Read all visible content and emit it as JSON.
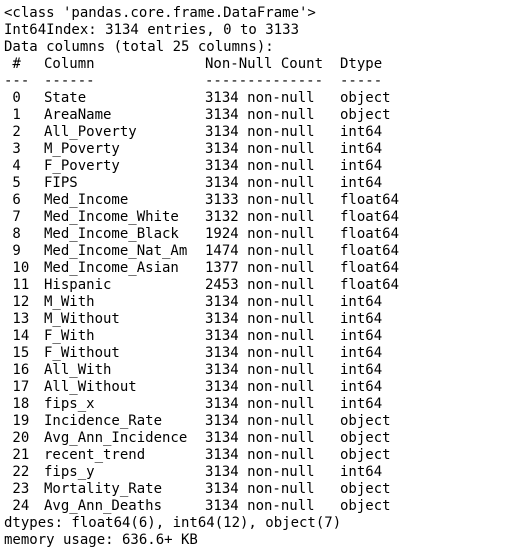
{
  "info": {
    "class_line": "<class 'pandas.core.frame.DataFrame'>",
    "index_line": "Int64Index: 3134 entries, 0 to 3133",
    "columns_line": "Data columns (total 25 columns):",
    "header": {
      "idx": " #",
      "column": "Column",
      "count": "Non-Null Count",
      "dtype": "Dtype"
    },
    "separator": {
      "idx": "---",
      "column": "------",
      "count": "--------------",
      "dtype": "-----"
    },
    "rows": [
      {
        "idx": " 0",
        "column": "State",
        "count": "3134 non-null",
        "dtype": "object"
      },
      {
        "idx": " 1",
        "column": "AreaName",
        "count": "3134 non-null",
        "dtype": "object"
      },
      {
        "idx": " 2",
        "column": "All_Poverty",
        "count": "3134 non-null",
        "dtype": "int64"
      },
      {
        "idx": " 3",
        "column": "M_Poverty",
        "count": "3134 non-null",
        "dtype": "int64"
      },
      {
        "idx": " 4",
        "column": "F_Poverty",
        "count": "3134 non-null",
        "dtype": "int64"
      },
      {
        "idx": " 5",
        "column": "FIPS",
        "count": "3134 non-null",
        "dtype": "int64"
      },
      {
        "idx": " 6",
        "column": "Med_Income",
        "count": "3133 non-null",
        "dtype": "float64"
      },
      {
        "idx": " 7",
        "column": "Med_Income_White",
        "count": "3132 non-null",
        "dtype": "float64"
      },
      {
        "idx": " 8",
        "column": "Med_Income_Black",
        "count": "1924 non-null",
        "dtype": "float64"
      },
      {
        "idx": " 9",
        "column": "Med_Income_Nat_Am",
        "count": "1474 non-null",
        "dtype": "float64"
      },
      {
        "idx": " 10",
        "column": "Med_Income_Asian",
        "count": "1377 non-null",
        "dtype": "float64"
      },
      {
        "idx": " 11",
        "column": "Hispanic",
        "count": "2453 non-null",
        "dtype": "float64"
      },
      {
        "idx": " 12",
        "column": "M_With",
        "count": "3134 non-null",
        "dtype": "int64"
      },
      {
        "idx": " 13",
        "column": "M_Without",
        "count": "3134 non-null",
        "dtype": "int64"
      },
      {
        "idx": " 14",
        "column": "F_With",
        "count": "3134 non-null",
        "dtype": "int64"
      },
      {
        "idx": " 15",
        "column": "F_Without",
        "count": "3134 non-null",
        "dtype": "int64"
      },
      {
        "idx": " 16",
        "column": "All_With",
        "count": "3134 non-null",
        "dtype": "int64"
      },
      {
        "idx": " 17",
        "column": "All_Without",
        "count": "3134 non-null",
        "dtype": "int64"
      },
      {
        "idx": " 18",
        "column": "fips_x",
        "count": "3134 non-null",
        "dtype": "int64"
      },
      {
        "idx": " 19",
        "column": "Incidence_Rate",
        "count": "3134 non-null",
        "dtype": "object"
      },
      {
        "idx": " 20",
        "column": "Avg_Ann_Incidence",
        "count": "3134 non-null",
        "dtype": "object"
      },
      {
        "idx": " 21",
        "column": "recent_trend",
        "count": "3134 non-null",
        "dtype": "object"
      },
      {
        "idx": " 22",
        "column": "fips_y",
        "count": "3134 non-null",
        "dtype": "int64"
      },
      {
        "idx": " 23",
        "column": "Mortality_Rate",
        "count": "3134 non-null",
        "dtype": "object"
      },
      {
        "idx": " 24",
        "column": "Avg_Ann_Deaths",
        "count": "3134 non-null",
        "dtype": "object"
      }
    ],
    "dtypes_line": "dtypes: float64(6), int64(12), object(7)",
    "memory_line": "memory usage: 636.6+ KB"
  }
}
